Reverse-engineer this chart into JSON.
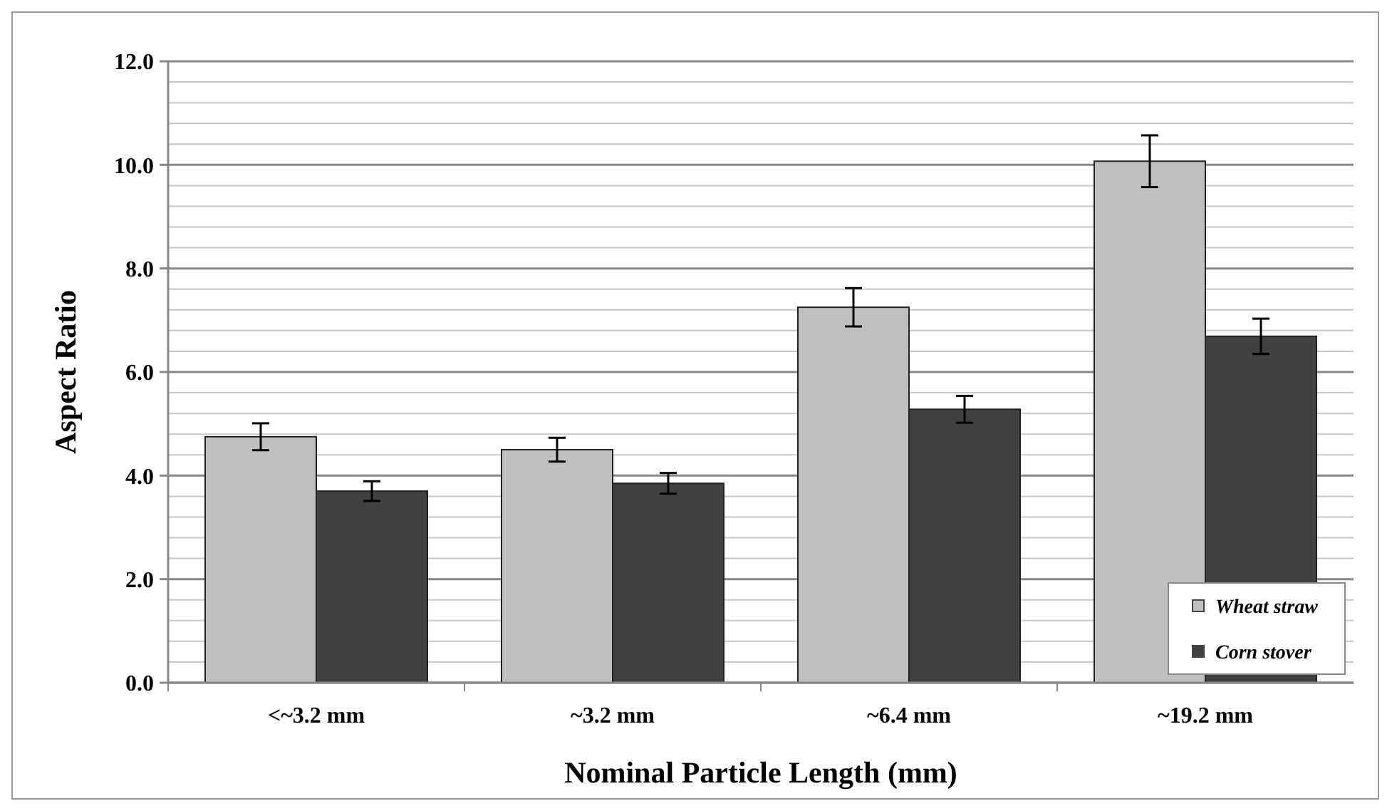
{
  "chart_data": {
    "type": "bar",
    "xlabel": "Nominal Particle Length (mm)",
    "ylabel": "Aspect Ratio",
    "categories": [
      "<~3.2 mm",
      "~3.2 mm",
      "~6.4 mm",
      "~19.2 mm"
    ],
    "series": [
      {
        "name": "Wheat straw",
        "color": "#c0c0c0",
        "values": [
          4.75,
          4.5,
          7.25,
          10.07
        ],
        "errors": [
          0.26,
          0.23,
          0.37,
          0.5
        ]
      },
      {
        "name": "Corn stover",
        "color": "#404040",
        "values": [
          3.7,
          3.85,
          5.28,
          6.69
        ],
        "errors": [
          0.19,
          0.2,
          0.26,
          0.34
        ]
      }
    ],
    "ylim": [
      0,
      12
    ],
    "yticks": [
      {
        "value": 0,
        "label": "0.0"
      },
      {
        "value": 0.4,
        "label": null
      },
      {
        "value": 0.8,
        "label": null
      },
      {
        "value": 1.2,
        "label": null
      },
      {
        "value": 1.6,
        "label": null
      },
      {
        "value": 2,
        "label": "2.0"
      },
      {
        "value": 2.4,
        "label": null
      },
      {
        "value": 2.8,
        "label": null
      },
      {
        "value": 3.2,
        "label": null
      },
      {
        "value": 3.6,
        "label": null
      },
      {
        "value": 4,
        "label": "4.0"
      },
      {
        "value": 4.4,
        "label": null
      },
      {
        "value": 4.8,
        "label": null
      },
      {
        "value": 5.2,
        "label": null
      },
      {
        "value": 5.6,
        "label": null
      },
      {
        "value": 6,
        "label": "6.0"
      },
      {
        "value": 6.4,
        "label": null
      },
      {
        "value": 6.8,
        "label": null
      },
      {
        "value": 7.2,
        "label": null
      },
      {
        "value": 7.6,
        "label": null
      },
      {
        "value": 8,
        "label": "8.0"
      },
      {
        "value": 8.4,
        "label": null
      },
      {
        "value": 8.8,
        "label": null
      },
      {
        "value": 9.2,
        "label": null
      },
      {
        "value": 9.6,
        "label": null
      },
      {
        "value": 10,
        "label": "10.0"
      },
      {
        "value": 10.4,
        "label": null
      },
      {
        "value": 10.8,
        "label": null
      },
      {
        "value": 11.2,
        "label": null
      },
      {
        "value": 11.6,
        "label": null
      },
      {
        "value": 12,
        "label": "12.0"
      }
    ],
    "grid": true,
    "legend": "bottom right"
  }
}
